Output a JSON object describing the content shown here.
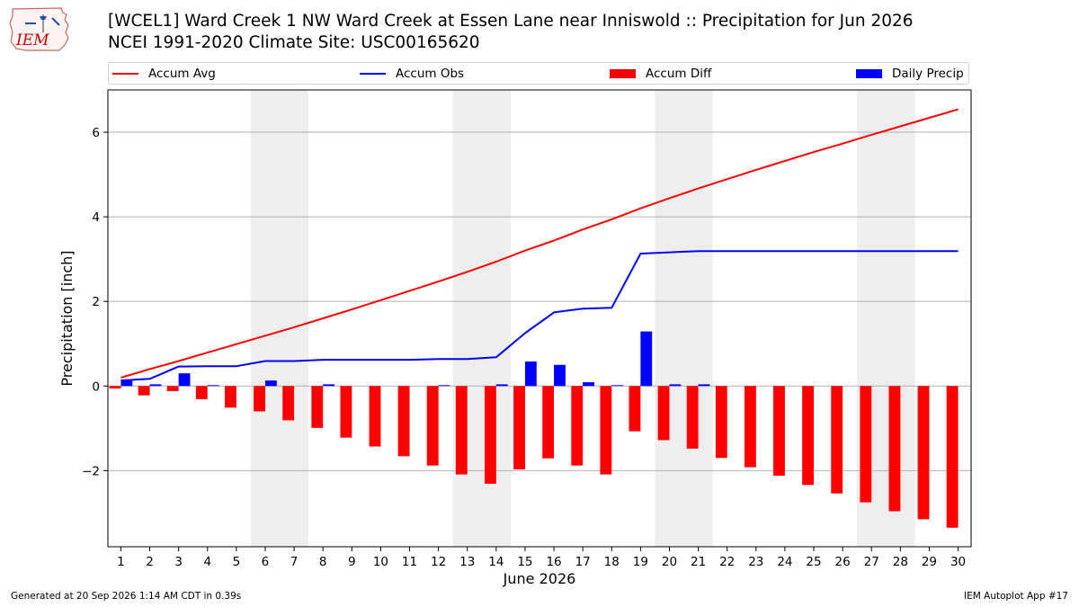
{
  "header": {
    "title_line1": "[WCEL1] Ward Creek 1 NW Ward Creek at Essen Lane near Inniswold :: Precipitation for Jun 2026",
    "title_line2": "NCEI 1991-2020 Climate Site: USC00165620"
  },
  "logo": {
    "text": "IEM",
    "color": "#cc0000"
  },
  "legend": {
    "items": [
      {
        "label": "Accum Avg",
        "kind": "line",
        "color": "#ff0000"
      },
      {
        "label": "Accum Obs",
        "kind": "line",
        "color": "#0000ff"
      },
      {
        "label": "Accum Diff",
        "kind": "bar",
        "color": "#ff0000"
      },
      {
        "label": "Daily Precip",
        "kind": "bar",
        "color": "#0000ff"
      }
    ]
  },
  "chart_data": {
    "type": "bar",
    "xlabel": "June 2026",
    "ylabel": "Precipitation [inch]",
    "x": [
      1,
      2,
      3,
      4,
      5,
      6,
      7,
      8,
      9,
      10,
      11,
      12,
      13,
      14,
      15,
      16,
      17,
      18,
      19,
      20,
      21,
      22,
      23,
      24,
      25,
      26,
      27,
      28,
      29,
      30
    ],
    "xticks": [
      "1",
      "2",
      "3",
      "4",
      "5",
      "6",
      "7",
      "8",
      "9",
      "10",
      "11",
      "12",
      "13",
      "14",
      "15",
      "16",
      "17",
      "18",
      "19",
      "20",
      "21",
      "22",
      "23",
      "24",
      "25",
      "26",
      "27",
      "28",
      "29",
      "30"
    ],
    "ylim": [
      -3.8,
      7.0
    ],
    "yticks": [
      -2,
      0,
      2,
      4,
      6
    ],
    "ytick_labels": [
      "−2",
      "0",
      "2",
      "4",
      "6"
    ],
    "grid": "horizontal",
    "weekend_shading": [
      [
        6,
        7
      ],
      [
        13,
        14
      ],
      [
        20,
        21
      ],
      [
        27,
        28
      ]
    ],
    "shading_color": "#eeeeee",
    "series": [
      {
        "name": "Accum Avg",
        "type": "line",
        "color": "#ff0000",
        "values": [
          0.2,
          0.4,
          0.59,
          0.79,
          0.99,
          1.19,
          1.39,
          1.6,
          1.81,
          2.03,
          2.25,
          2.47,
          2.7,
          2.94,
          3.2,
          3.44,
          3.7,
          3.94,
          4.2,
          4.44,
          4.67,
          4.89,
          5.11,
          5.32,
          5.53,
          5.73,
          5.94,
          6.14,
          6.34,
          6.54
        ]
      },
      {
        "name": "Accum Obs",
        "type": "line",
        "color": "#0000ff",
        "values": [
          0.13,
          0.17,
          0.46,
          0.47,
          0.47,
          0.59,
          0.59,
          0.62,
          0.62,
          0.62,
          0.62,
          0.64,
          0.64,
          0.68,
          1.25,
          1.74,
          1.83,
          1.85,
          3.13,
          3.16,
          3.19,
          3.19,
          3.19,
          3.19,
          3.19,
          3.19,
          3.19,
          3.19,
          3.19,
          3.19
        ]
      },
      {
        "name": "Accum Diff",
        "type": "bar",
        "color": "#ff0000",
        "values": [
          -0.06,
          -0.22,
          -0.12,
          -0.31,
          -0.51,
          -0.6,
          -0.81,
          -0.99,
          -1.22,
          -1.43,
          -1.66,
          -1.88,
          -2.09,
          -2.31,
          -1.97,
          -1.71,
          -1.88,
          -2.09,
          -1.07,
          -1.28,
          -1.48,
          -1.7,
          -1.92,
          -2.12,
          -2.34,
          -2.54,
          -2.75,
          -2.96,
          -3.15,
          -3.35
        ]
      },
      {
        "name": "Daily Precip",
        "type": "bar",
        "color": "#0000ff",
        "values": [
          0.13,
          0.04,
          0.3,
          0.02,
          0.0,
          0.13,
          0.0,
          0.04,
          0.0,
          0.0,
          0.0,
          0.02,
          0.0,
          0.04,
          0.58,
          0.5,
          0.09,
          0.02,
          1.29,
          0.04,
          0.04,
          0.0,
          0.0,
          0.0,
          0.0,
          0.0,
          0.0,
          0.0,
          0.0,
          0.0
        ]
      }
    ]
  },
  "footer": {
    "generated": "Generated at 20 Sep 2026 1:14 AM CDT in 0.39s",
    "app": "IEM Autoplot App #17"
  }
}
